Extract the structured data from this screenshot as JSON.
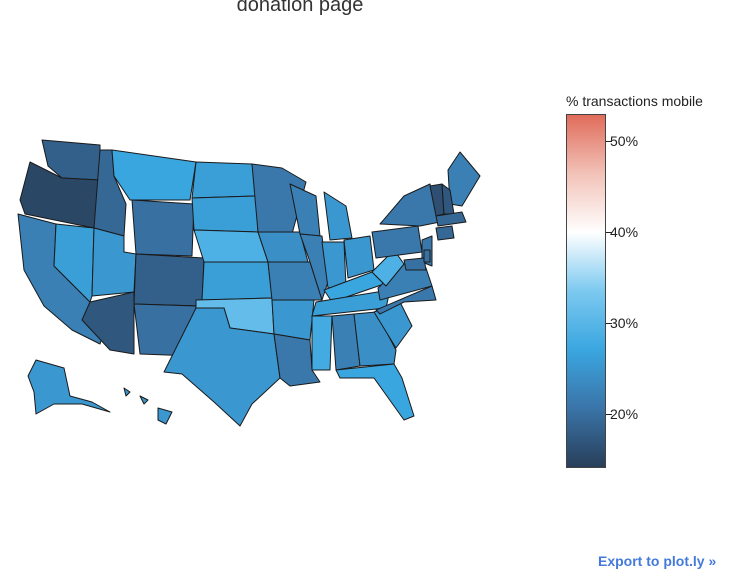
{
  "title": "donation page",
  "colorbar": {
    "title": "% transactions mobile",
    "range": [
      14,
      53
    ],
    "ticks": [
      {
        "value": 50,
        "label": "50%"
      },
      {
        "value": 40,
        "label": "40%"
      },
      {
        "value": 30,
        "label": "30%"
      },
      {
        "value": 20,
        "label": "20%"
      }
    ],
    "colors": [
      "#283f5a",
      "#3a74a8",
      "#3aa6e0",
      "#7cc9f0",
      "#ffffff",
      "#f2c2b8",
      "#e06c5a"
    ]
  },
  "export_label": "Export to plot.ly »",
  "map_data": {
    "type": "choropleth",
    "scope": "usa",
    "states": [
      {
        "code": "WA",
        "value": 18
      },
      {
        "code": "OR",
        "value": 15
      },
      {
        "code": "CA",
        "value": 22
      },
      {
        "code": "NV",
        "value": 26
      },
      {
        "code": "ID",
        "value": 19
      },
      {
        "code": "MT",
        "value": 27
      },
      {
        "code": "WY",
        "value": 20
      },
      {
        "code": "UT",
        "value": 25
      },
      {
        "code": "AZ",
        "value": 17
      },
      {
        "code": "CO",
        "value": 18
      },
      {
        "code": "NM",
        "value": 20
      },
      {
        "code": "ND",
        "value": 26
      },
      {
        "code": "SD",
        "value": 26
      },
      {
        "code": "NE",
        "value": 29
      },
      {
        "code": "KS",
        "value": 26
      },
      {
        "code": "OK",
        "value": 31
      },
      {
        "code": "TX",
        "value": 25
      },
      {
        "code": "MN",
        "value": 21
      },
      {
        "code": "IA",
        "value": 24
      },
      {
        "code": "MO",
        "value": 22
      },
      {
        "code": "AR",
        "value": 25
      },
      {
        "code": "LA",
        "value": 21
      },
      {
        "code": "WI",
        "value": 22
      },
      {
        "code": "IL",
        "value": 22
      },
      {
        "code": "MI",
        "value": 25
      },
      {
        "code": "IN",
        "value": 25
      },
      {
        "code": "OH",
        "value": 25
      },
      {
        "code": "KY",
        "value": 27
      },
      {
        "code": "TN",
        "value": 26
      },
      {
        "code": "MS",
        "value": 28
      },
      {
        "code": "AL",
        "value": 22
      },
      {
        "code": "GA",
        "value": 24
      },
      {
        "code": "FL",
        "value": 27
      },
      {
        "code": "SC",
        "value": 25
      },
      {
        "code": "NC",
        "value": 21
      },
      {
        "code": "VA",
        "value": 22
      },
      {
        "code": "WV",
        "value": 29
      },
      {
        "code": "PA",
        "value": 21
      },
      {
        "code": "NY",
        "value": 21
      },
      {
        "code": "ME",
        "value": 22
      },
      {
        "code": "VT",
        "value": 16
      },
      {
        "code": "NH",
        "value": 17
      },
      {
        "code": "MA",
        "value": 19
      },
      {
        "code": "CT",
        "value": 19
      },
      {
        "code": "NJ",
        "value": 21
      },
      {
        "code": "MD",
        "value": 20
      },
      {
        "code": "DE",
        "value": 20
      },
      {
        "code": "AK",
        "value": 25
      },
      {
        "code": "HI",
        "value": 25
      }
    ]
  }
}
